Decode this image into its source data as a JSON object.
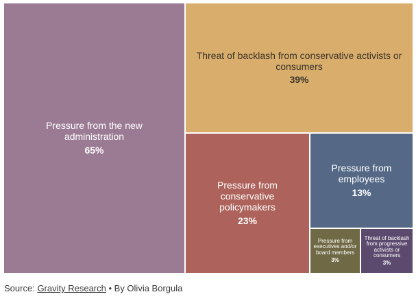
{
  "chart_data": {
    "type": "treemap",
    "title": "",
    "items": [
      {
        "label": "Pressure from the new administration",
        "value": 65,
        "value_label": "65%",
        "color": "#9b7b93"
      },
      {
        "label": "Threat of backlash from conservative activists or consumers",
        "value": 39,
        "value_label": "39%",
        "color": "#d9ae6c"
      },
      {
        "label": "Pressure from conservative policymakers",
        "value": 23,
        "value_label": "23%",
        "color": "#ad635b"
      },
      {
        "label": "Pressure from employees",
        "value": 13,
        "value_label": "13%",
        "color": "#556987"
      },
      {
        "label": "Pressure from executives and/or board members",
        "value": 3,
        "value_label": "3%",
        "color": "#6f6a45"
      },
      {
        "label": "Threat of backlash from progressive activists or consumers",
        "value": 3,
        "value_label": "3%",
        "color": "#5c4a6e"
      }
    ]
  },
  "source": {
    "prefix": "Source:",
    "link": "Gravity Research",
    "suffix": "• By Olivia Borgula"
  }
}
